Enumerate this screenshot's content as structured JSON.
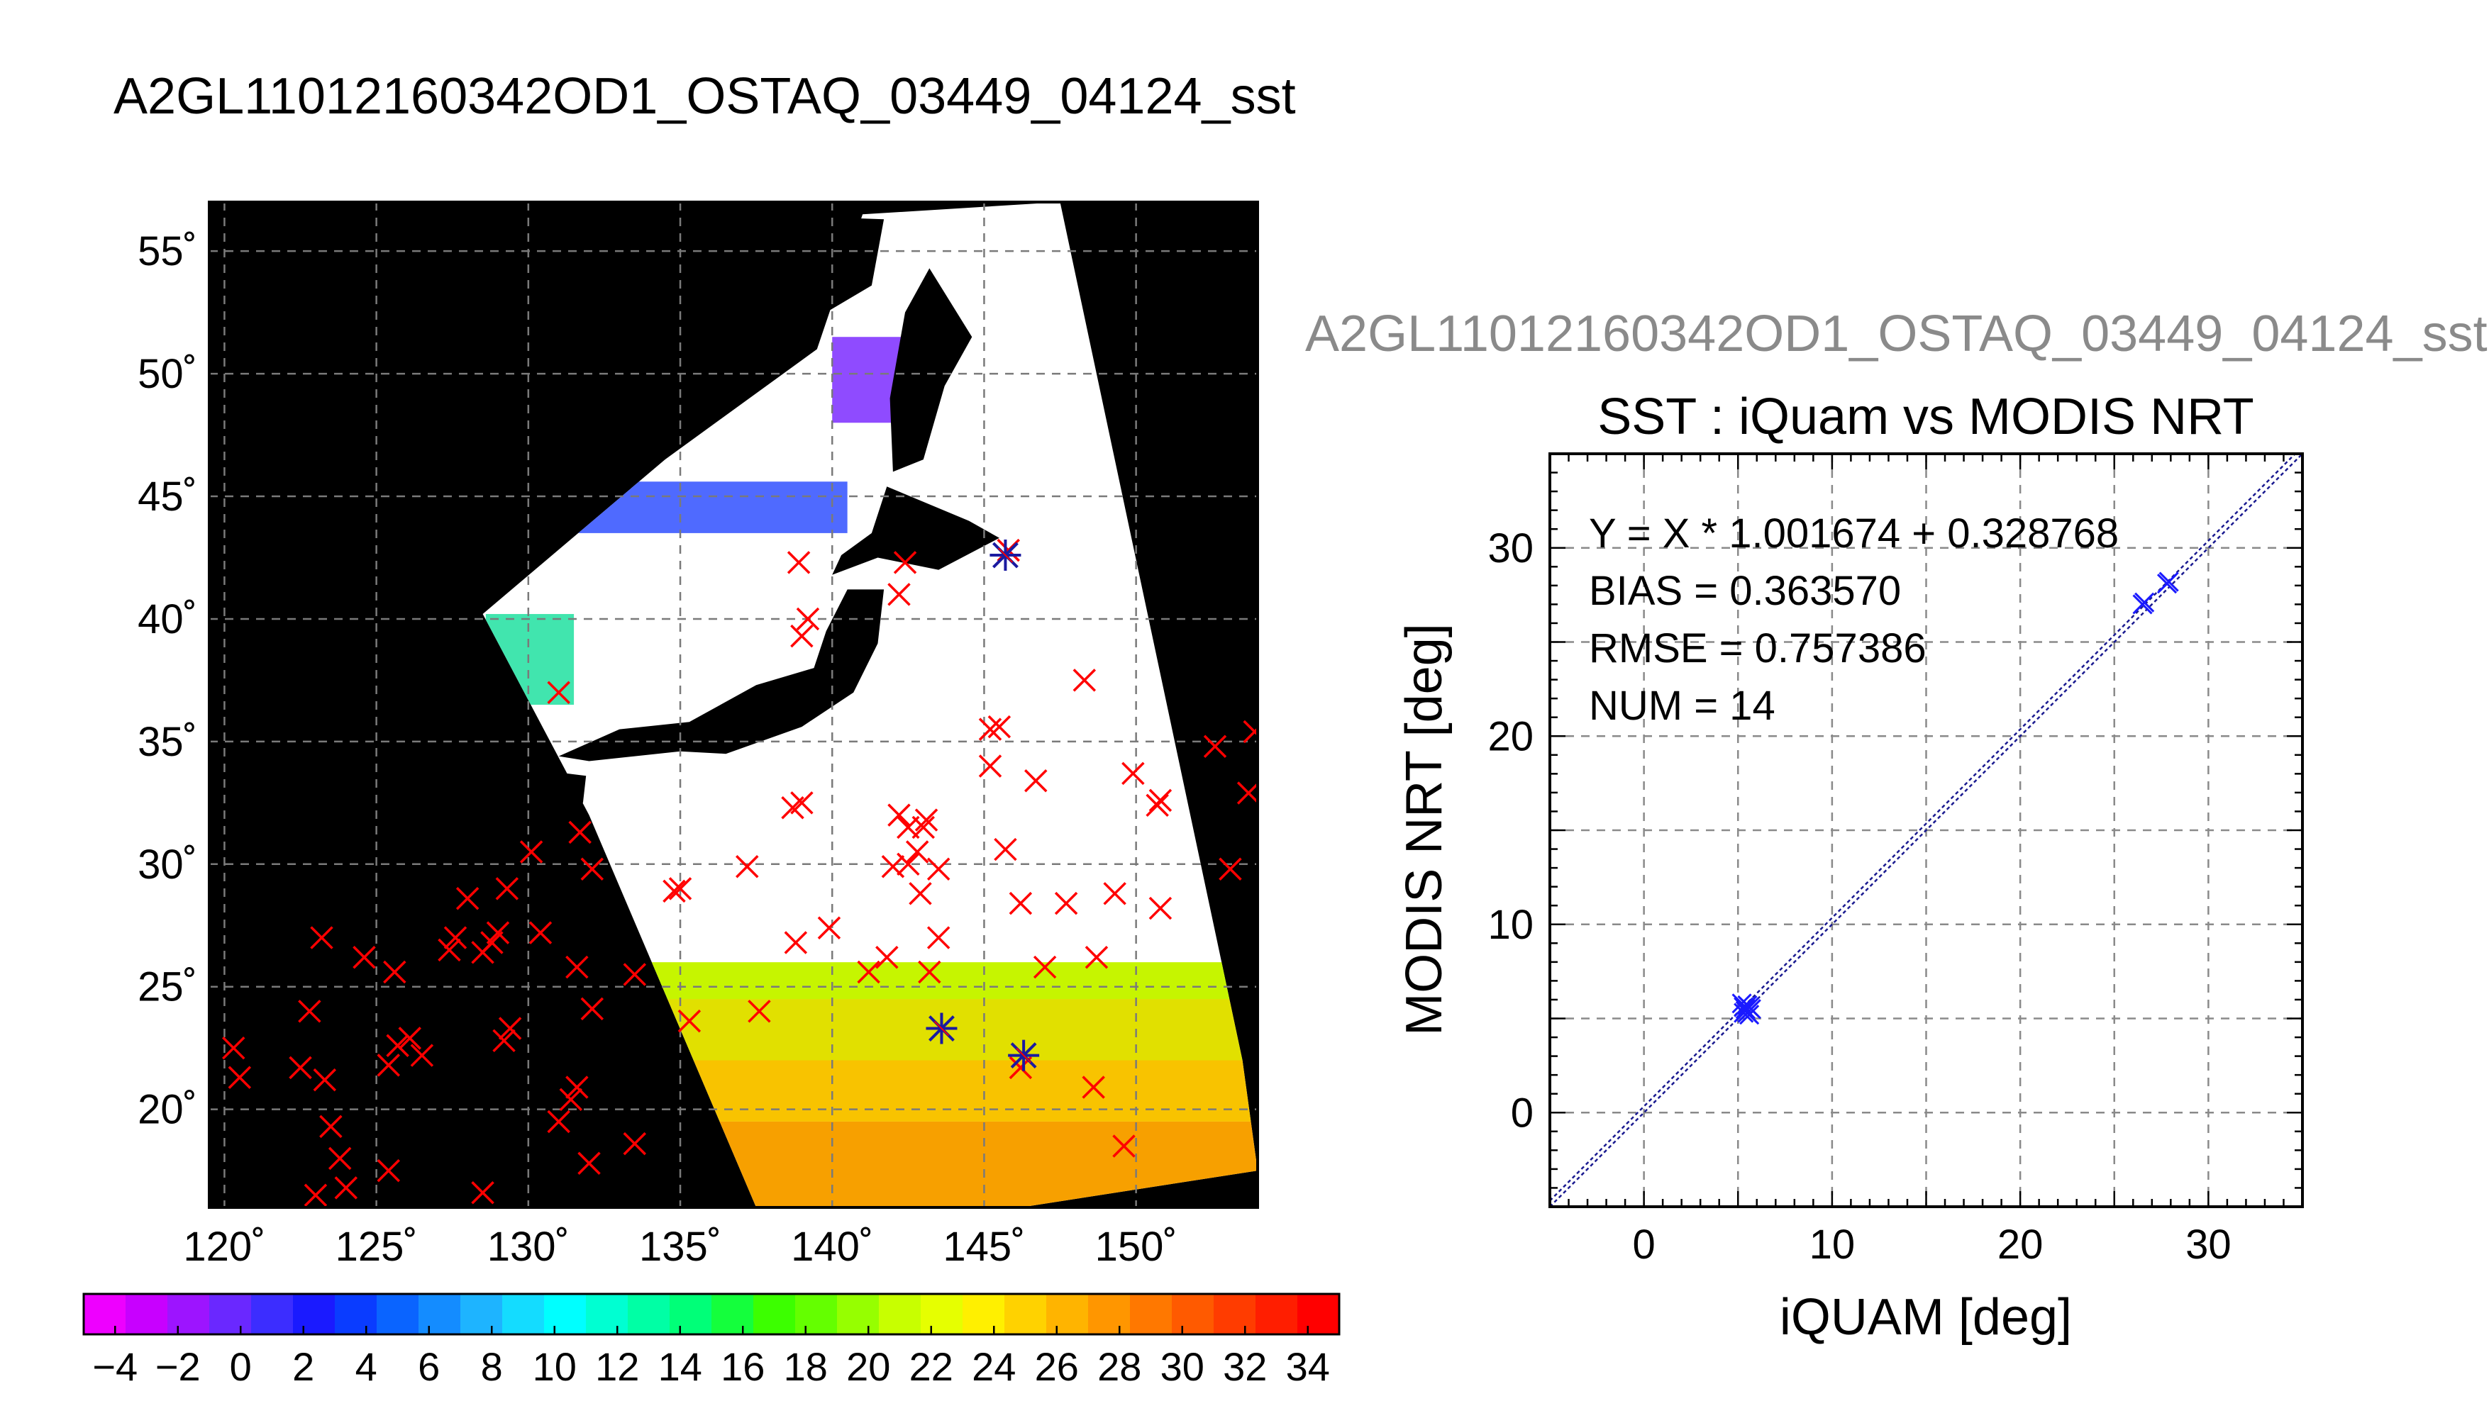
{
  "page_title": "A2GL11012160342OD1_OSTAQ_03449_04124_sst",
  "scatter_ghost_title": "A2GL11012160342OD1_OSTAQ_03449_04124_sst",
  "chart_data": [
    {
      "type": "scatter",
      "kind": "map",
      "title": "",
      "xlabel": "",
      "ylabel": "",
      "x_ticks": [
        {
          "value": 120,
          "label": "120˚"
        },
        {
          "value": 125,
          "label": "125˚"
        },
        {
          "value": 130,
          "label": "130˚"
        },
        {
          "value": 135,
          "label": "135˚"
        },
        {
          "value": 140,
          "label": "140˚"
        },
        {
          "value": 145,
          "label": "145˚"
        },
        {
          "value": 150,
          "label": "150˚"
        }
      ],
      "y_ticks": [
        {
          "value": 20,
          "label": "20˚"
        },
        {
          "value": 25,
          "label": "25˚"
        },
        {
          "value": 30,
          "label": "30˚"
        },
        {
          "value": 35,
          "label": "35˚"
        },
        {
          "value": 40,
          "label": "40˚"
        },
        {
          "value": 45,
          "label": "45˚"
        },
        {
          "value": 50,
          "label": "50˚"
        },
        {
          "value": 55,
          "label": "55˚"
        }
      ],
      "xlim": [
        119.5,
        154
      ],
      "ylim": [
        16,
        57
      ],
      "grid": true,
      "swath_polygon": [
        [
          128.5,
          40.2
        ],
        [
          134.5,
          46.5
        ],
        [
          139.5,
          51
        ],
        [
          141,
          56.5
        ],
        [
          147.5,
          57
        ],
        [
          153.5,
          22
        ],
        [
          154,
          17.5
        ],
        [
          141,
          15
        ],
        [
          137.5,
          16
        ],
        [
          132,
          32
        ]
      ],
      "land_polygons": [
        [
          [
            136.5,
            34.5
          ],
          [
            139,
            35.6
          ],
          [
            140.7,
            37
          ],
          [
            141.5,
            39
          ],
          [
            141.7,
            41.2
          ],
          [
            140.5,
            41.2
          ],
          [
            139.8,
            39.5
          ],
          [
            139.4,
            38
          ],
          [
            137.5,
            37.3
          ],
          [
            135.3,
            35.8
          ],
          [
            133,
            35.5
          ],
          [
            131,
            34.4
          ],
          [
            132,
            34.2
          ],
          [
            135,
            34.6
          ]
        ],
        [
          [
            140,
            41.8
          ],
          [
            141.5,
            42.5
          ],
          [
            143.5,
            42
          ],
          [
            145.5,
            43.3
          ],
          [
            144.5,
            44
          ],
          [
            141.8,
            45.4
          ],
          [
            141.3,
            43.5
          ],
          [
            140.3,
            42.6
          ]
        ],
        [
          [
            142,
            46
          ],
          [
            143,
            46.5
          ],
          [
            143.7,
            49.5
          ],
          [
            144.6,
            51.5
          ],
          [
            143.2,
            54.3
          ],
          [
            142.4,
            52.5
          ],
          [
            141.9,
            49
          ]
        ],
        [
          [
            139.8,
            52.5
          ],
          [
            141.3,
            53.6
          ],
          [
            141.7,
            56.3
          ],
          [
            137,
            56.5
          ],
          [
            136.5,
            54.8
          ]
        ],
        [
          [
            130.7,
            31.3
          ],
          [
            131.8,
            32.5
          ],
          [
            131.9,
            33.6
          ],
          [
            130.6,
            33.8
          ],
          [
            129.9,
            32.7
          ]
        ]
      ],
      "sst_bands": [
        {
          "lat_from": 16.0,
          "lat_to": 19.5,
          "color": "#f7a000"
        },
        {
          "lat_from": 19.5,
          "lat_to": 22.0,
          "color": "#f8c300"
        },
        {
          "lat_from": 22.0,
          "lat_to": 24.5,
          "color": "#e1e000"
        },
        {
          "lat_from": 24.5,
          "lat_to": 26.0,
          "color": "#c6f500"
        }
      ],
      "cold_bands": [
        {
          "lon_from": 131,
          "lon_to": 140.5,
          "lat_from": 43.5,
          "lat_to": 45.6,
          "color": "#3050ff"
        },
        {
          "lon_from": 140,
          "lon_to": 142.5,
          "lat_from": 48,
          "lat_to": 51.5,
          "color": "#7b2cff"
        },
        {
          "lon_from": 128.6,
          "lon_to": 131.5,
          "lat_from": 36.5,
          "lat_to": 40.2,
          "color": "#20e0a0"
        }
      ],
      "series": [
        {
          "name": "",
          "marker": "x",
          "color": "#ff0000",
          "points": [
            [
              120.3,
              22.5
            ],
            [
              120.5,
              21.3
            ],
            [
              122.5,
              21.7
            ],
            [
              122.8,
              24.0
            ],
            [
              123.2,
              27.0
            ],
            [
              123.3,
              21.2
            ],
            [
              123.5,
              19.3
            ],
            [
              123.8,
              18.0
            ],
            [
              123.0,
              16.5
            ],
            [
              124.0,
              16.8
            ],
            [
              124.6,
              26.2
            ],
            [
              125.4,
              21.8
            ],
            [
              125.6,
              25.6
            ],
            [
              125.7,
              22.6
            ],
            [
              126.1,
              22.9
            ],
            [
              125.4,
              17.5
            ],
            [
              126.5,
              22.2
            ],
            [
              127.4,
              26.5
            ],
            [
              127.6,
              27.0
            ],
            [
              128.0,
              28.6
            ],
            [
              128.5,
              26.4
            ],
            [
              128.8,
              26.8
            ],
            [
              129.0,
              27.2
            ],
            [
              129.3,
              29.0
            ],
            [
              129.2,
              22.8
            ],
            [
              129.4,
              23.3
            ],
            [
              128.5,
              16.6
            ],
            [
              130.1,
              30.5
            ],
            [
              130.4,
              27.2
            ],
            [
              131.4,
              20.4
            ],
            [
              131.6,
              20.9
            ],
            [
              131.0,
              19.5
            ],
            [
              131.6,
              25.8
            ],
            [
              132.1,
              24.1
            ],
            [
              132.0,
              17.8
            ],
            [
              131.7,
              31.3
            ],
            [
              132.1,
              29.8
            ],
            [
              133.5,
              25.5
            ],
            [
              133.5,
              18.6
            ],
            [
              134.8,
              28.9
            ],
            [
              135.0,
              29.0
            ],
            [
              135.3,
              23.6
            ],
            [
              137.2,
              29.9
            ],
            [
              137.6,
              24.0
            ],
            [
              138.8,
              26.8
            ],
            [
              139.9,
              27.4
            ],
            [
              138.7,
              32.3
            ],
            [
              139.0,
              32.5
            ],
            [
              139.0,
              39.3
            ],
            [
              139.2,
              40.0
            ],
            [
              138.9,
              42.3
            ],
            [
              131.0,
              37.0
            ],
            [
              141.2,
              25.6
            ],
            [
              141.8,
              26.2
            ],
            [
              142.0,
              29.9
            ],
            [
              142.5,
              30.0
            ],
            [
              142.9,
              28.8
            ],
            [
              142.2,
              32.0
            ],
            [
              142.5,
              31.5
            ],
            [
              142.8,
              30.5
            ],
            [
              143.0,
              31.5
            ],
            [
              143.1,
              31.8
            ],
            [
              143.5,
              29.8
            ],
            [
              143.2,
              25.6
            ],
            [
              143.5,
              27.0
            ],
            [
              142.2,
              41.0
            ],
            [
              142.4,
              42.3
            ],
            [
              145.2,
              35.5
            ],
            [
              145.5,
              35.6
            ],
            [
              145.2,
              34.0
            ],
            [
              145.7,
              30.6
            ],
            [
              146.2,
              28.4
            ],
            [
              146.7,
              33.4
            ],
            [
              147.0,
              25.8
            ],
            [
              147.7,
              28.4
            ],
            [
              148.3,
              37.5
            ],
            [
              148.7,
              26.2
            ],
            [
              149.3,
              28.8
            ],
            [
              149.9,
              33.7
            ],
            [
              150.7,
              32.4
            ],
            [
              150.8,
              32.6
            ],
            [
              150.8,
              28.2
            ],
            [
              152.6,
              34.8
            ],
            [
              153.1,
              29.8
            ],
            [
              153.7,
              32.9
            ],
            [
              153.9,
              35.4
            ],
            [
              148.6,
              20.9
            ],
            [
              149.6,
              18.5
            ],
            [
              146.2,
              21.7
            ],
            [
              145.8,
              42.8
            ]
          ]
        },
        {
          "name": "",
          "marker": "asterisk",
          "color": "#1a1aa0",
          "points": [
            [
              143.6,
              23.3
            ],
            [
              146.3,
              22.2
            ],
            [
              145.7,
              42.6
            ]
          ]
        }
      ],
      "colorbar": {
        "vmin": -5,
        "vmax": 35,
        "step": 1,
        "tick_labels": [
          "−4",
          "−2",
          "0",
          "2",
          "4",
          "6",
          "8",
          "10",
          "12",
          "14",
          "16",
          "18",
          "20",
          "22",
          "24",
          "26",
          "28",
          "30",
          "32",
          "34"
        ],
        "tick_values": [
          -4,
          -2,
          0,
          2,
          4,
          6,
          8,
          10,
          12,
          14,
          16,
          18,
          20,
          22,
          24,
          26,
          28,
          30,
          32,
          34
        ],
        "colors": [
          "#ee00ff",
          "#c800ff",
          "#9d14ff",
          "#6a28ff",
          "#3c2dff",
          "#1a1aff",
          "#0a3cff",
          "#0a64ff",
          "#148cff",
          "#1eb4ff",
          "#14dcff",
          "#00ffff",
          "#00ffd2",
          "#00ffa5",
          "#00ff78",
          "#14ff3c",
          "#3cff00",
          "#64ff00",
          "#96ff00",
          "#c8ff00",
          "#e6ff00",
          "#fff000",
          "#ffd200",
          "#ffb400",
          "#ff9600",
          "#ff7800",
          "#ff5a00",
          "#ff3c00",
          "#ff1e00",
          "#ff0000"
        ]
      }
    },
    {
      "type": "scatter",
      "title": "SST : iQuam vs MODIS NRT",
      "xlabel": "iQUAM [deg]",
      "ylabel": "MODIS NRT [deg]",
      "xlim": [
        -5,
        35
      ],
      "ylim": [
        -5,
        35
      ],
      "x_ticks": [
        0,
        10,
        20,
        30
      ],
      "y_ticks": [
        0,
        10,
        20,
        30
      ],
      "grid": true,
      "stats": [
        "Y = X * 1.001674 + 0.328768",
        "BIAS = 0.363570",
        "RMSE = 0.757386",
        "NUM = 14"
      ],
      "fit": {
        "slope": 1.001674,
        "intercept": 0.328768
      },
      "series": [
        {
          "name": "",
          "marker": "x",
          "color": "#1a1aff",
          "points": [
            [
              5.2,
              5.8
            ],
            [
              5.4,
              5.5
            ],
            [
              5.5,
              5.3
            ],
            [
              5.3,
              5.6
            ],
            [
              5.6,
              5.2
            ],
            [
              5.5,
              5.7
            ],
            [
              5.4,
              5.4
            ],
            [
              5.7,
              5.5
            ],
            [
              5.3,
              5.3
            ],
            [
              5.6,
              5.6
            ],
            [
              26.5,
              27.0
            ],
            [
              26.6,
              27.1
            ],
            [
              27.8,
              28.1
            ],
            [
              27.9,
              28.2
            ]
          ]
        }
      ]
    }
  ]
}
